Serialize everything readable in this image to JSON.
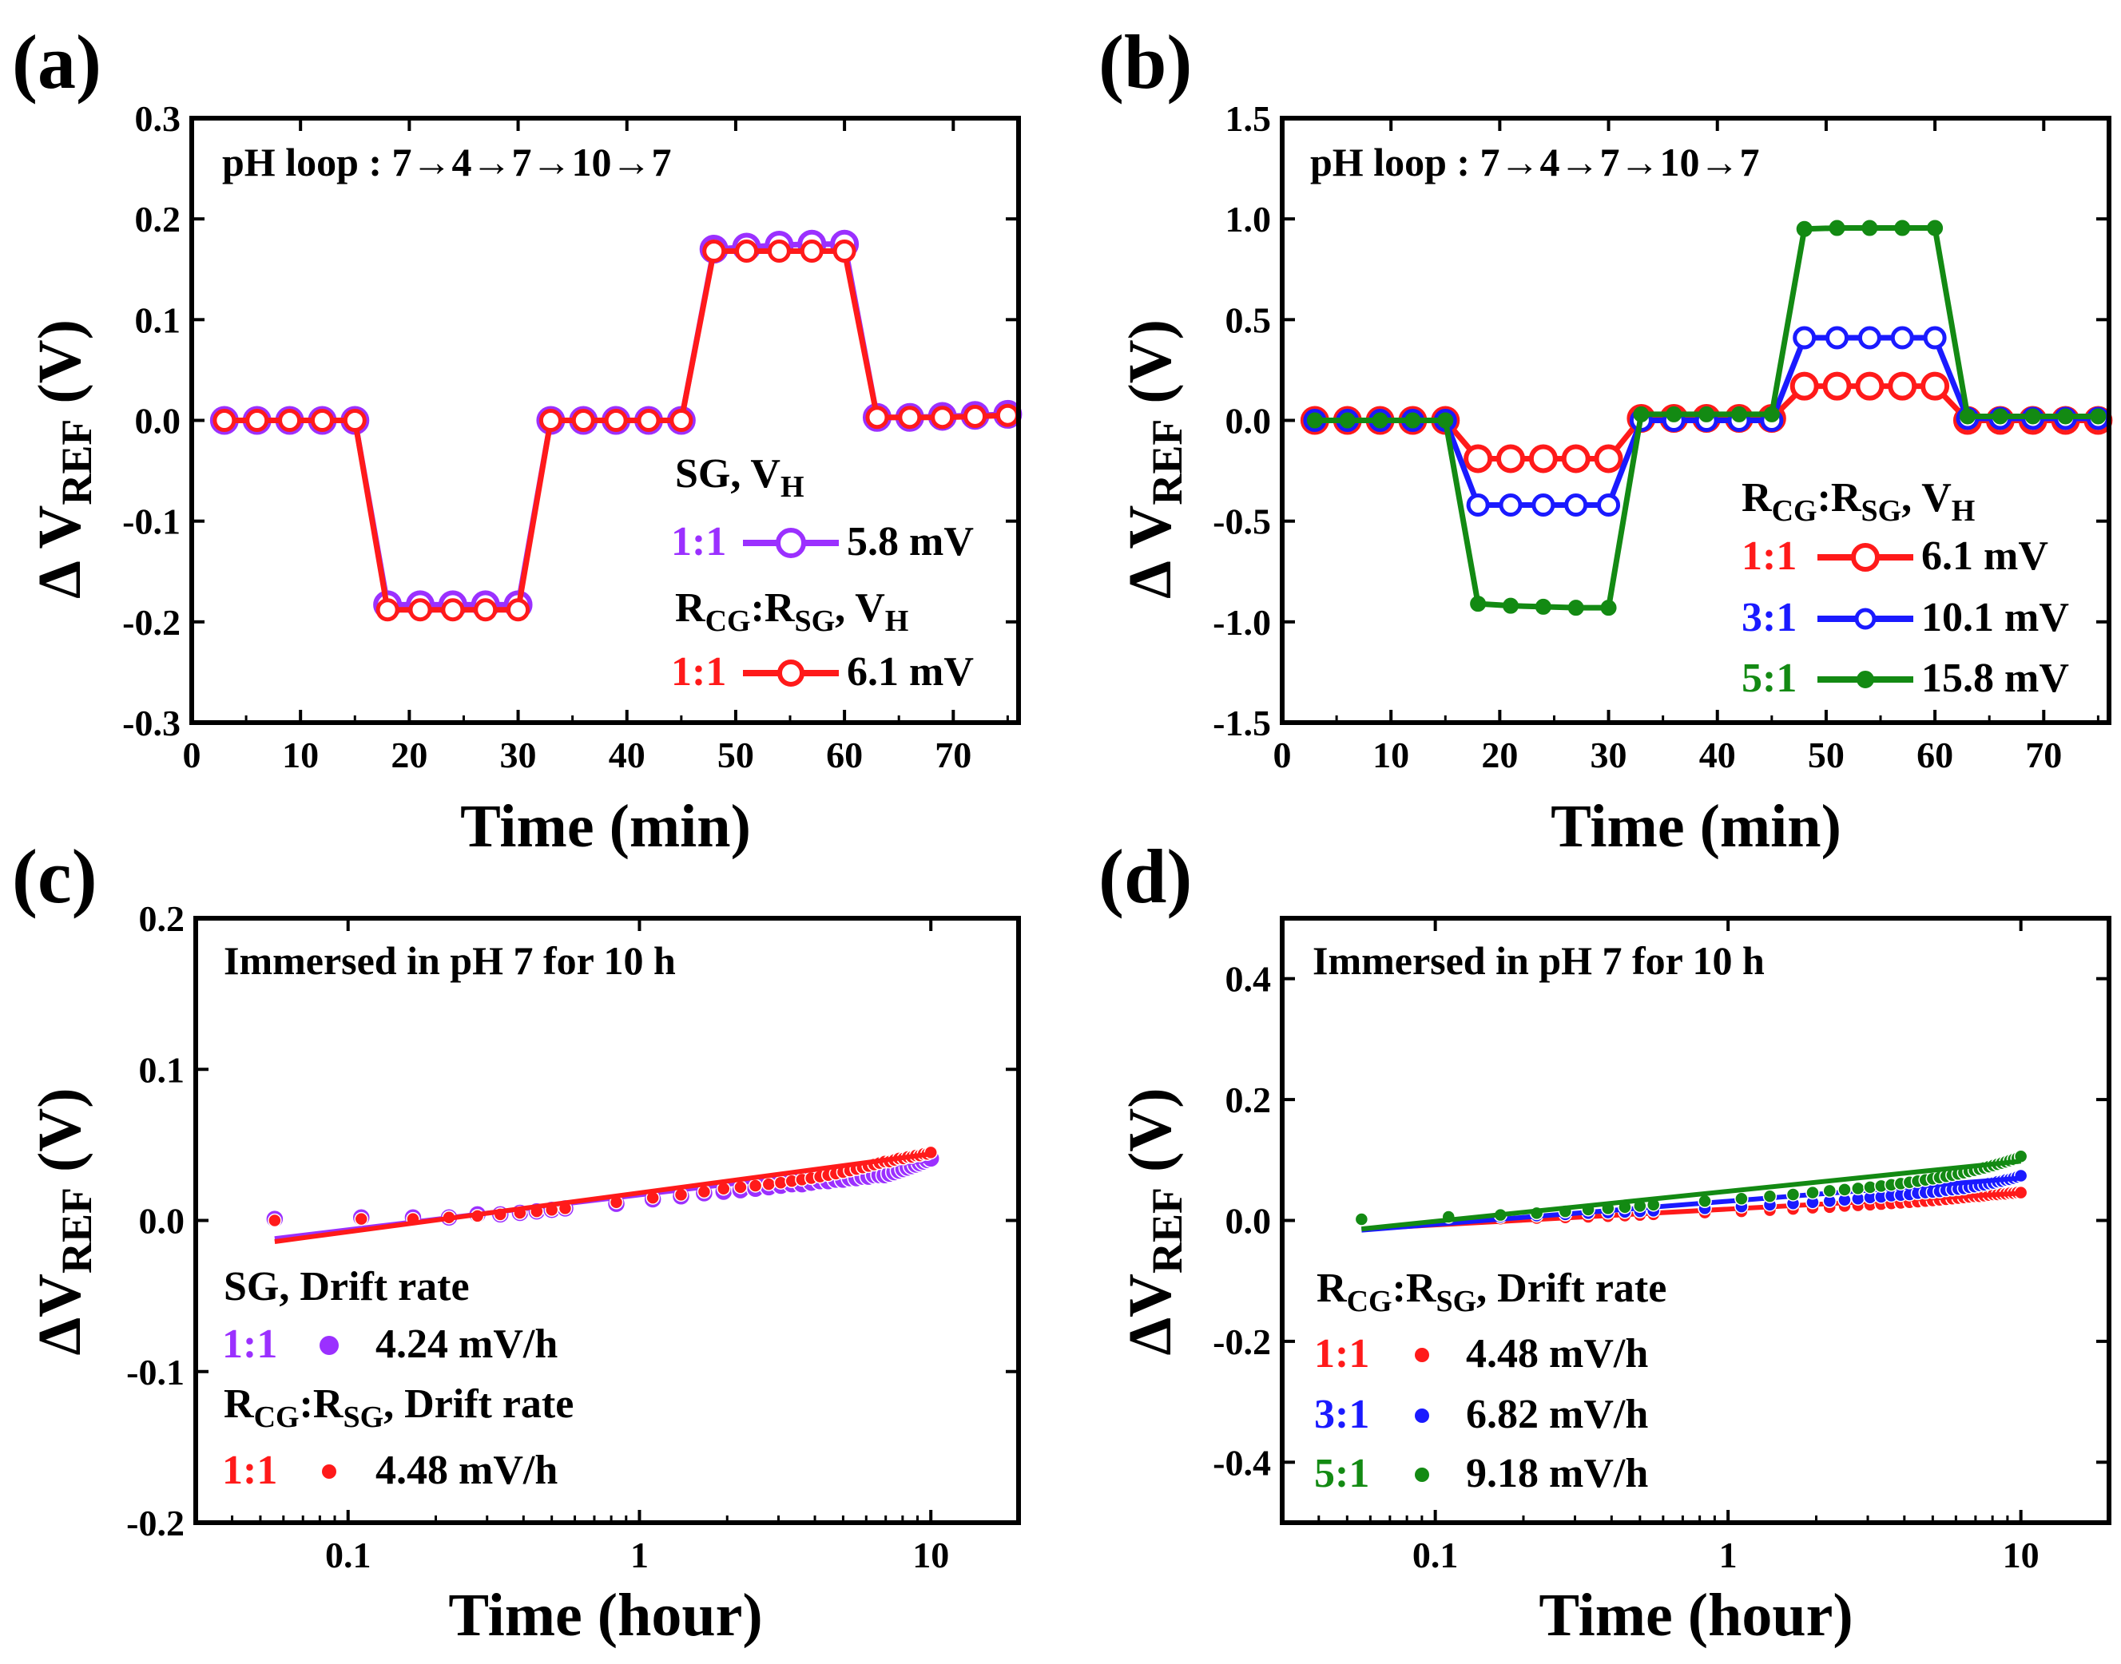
{
  "figure": {
    "colors": {
      "purple": "#9b30ff",
      "red": "#ff1a1a",
      "blue": "#1a1aff",
      "green": "#138a13",
      "frame": "#000000"
    },
    "panels": [
      {
        "letter": "(a)",
        "ylabel_main": "Δ V",
        "ylabel_sub": "REF",
        "ylabel_unit": " (V)",
        "xlabel": "Time (min)",
        "annotation": "pH loop : 7→4→7→10→7"
      },
      {
        "letter": "(b)",
        "ylabel_main": "Δ V",
        "ylabel_sub": "REF",
        "ylabel_unit": " (V)",
        "xlabel": "Time (min)",
        "annotation": "pH loop : 7→4→7→10→7"
      },
      {
        "letter": "(c)",
        "ylabel_main": "ΔV",
        "ylabel_sub": "REF",
        "ylabel_unit": " (V)",
        "xlabel": "Time (hour)",
        "annotation": "Immersed in pH 7 for 10 h"
      },
      {
        "letter": "(d)",
        "ylabel_main": "ΔV",
        "ylabel_sub": "REF",
        "ylabel_unit": " (V)",
        "xlabel": "Time (hour)",
        "annotation": "Immersed in pH 7 for 10 h"
      }
    ],
    "legends": {
      "a": {
        "sg_title": "SG, V",
        "sg_title_sub": "H",
        "rcg_title_r1": "R",
        "rcg_title_cg": "CG",
        "rcg_title_mid": ":R",
        "rcg_title_sg": "SG",
        "rcg_title_end": ", V",
        "rcg_title_h": "H",
        "entries": [
          {
            "key": "1:1",
            "value": "5.8 mV"
          },
          {
            "key": "1:1",
            "value": "6.1 mV"
          }
        ]
      },
      "b": {
        "rcg_title_r1": "R",
        "rcg_title_cg": "CG",
        "rcg_title_mid": ":R",
        "rcg_title_sg": "SG",
        "rcg_title_end": ", V",
        "rcg_title_h": "H",
        "entries": [
          {
            "key": "1:1",
            "value": "6.1 mV"
          },
          {
            "key": "3:1",
            "value": "10.1 mV"
          },
          {
            "key": "5:1",
            "value": "15.8 mV"
          }
        ]
      },
      "c": {
        "sg_title": "SG, Drift rate",
        "rcg_title_r1": "R",
        "rcg_title_cg": "CG",
        "rcg_title_mid": ":R",
        "rcg_title_sg": "SG",
        "rcg_title_end": ", Drift rate",
        "entries": [
          {
            "key": "1:1",
            "value": "4.24 mV/h"
          },
          {
            "key": "1:1",
            "value": "4.48 mV/h"
          }
        ]
      },
      "d": {
        "rcg_title_r1": "R",
        "rcg_title_cg": "CG",
        "rcg_title_mid": ":R",
        "rcg_title_sg": "SG",
        "rcg_title_end": ", Drift rate",
        "entries": [
          {
            "key": "1:1",
            "value": "4.48 mV/h"
          },
          {
            "key": "3:1",
            "value": "6.82 mV/h"
          },
          {
            "key": "5:1",
            "value": "9.18 mV/h"
          }
        ]
      }
    }
  },
  "chart_data": [
    {
      "panel": "a",
      "type": "line",
      "xlabel": "Time (min)",
      "ylabel": "ΔV_REF (V)",
      "xlim": [
        0,
        76
      ],
      "ylim": [
        -0.3,
        0.3
      ],
      "xticks": [
        0,
        10,
        20,
        30,
        40,
        50,
        60,
        70
      ],
      "yticks": [
        -0.3,
        -0.2,
        -0.1,
        0.0,
        0.1,
        0.2,
        0.3
      ],
      "ytick_labels": [
        "-0.3",
        "-0.2",
        "-0.1",
        "0.0",
        "0.1",
        "0.2",
        "0.3"
      ],
      "x": [
        3,
        6,
        9,
        12,
        15,
        18,
        21,
        24,
        27,
        30,
        33,
        36,
        39,
        42,
        45,
        48,
        51,
        54,
        57,
        60,
        63,
        66,
        69,
        72,
        75
      ],
      "series": [
        {
          "name": "SG 1:1",
          "color": "#9b30ff",
          "marker": "open-circle-large",
          "values": [
            0.0,
            0.0,
            0.0,
            0.0,
            0.0,
            -0.183,
            -0.183,
            -0.183,
            -0.183,
            -0.183,
            0.0,
            0.0,
            0.0,
            0.0,
            0.0,
            0.17,
            0.172,
            0.174,
            0.175,
            0.175,
            0.003,
            0.003,
            0.004,
            0.005,
            0.006
          ]
        },
        {
          "name": "RCG:RSG 1:1",
          "color": "#ff1a1a",
          "marker": "open-circle",
          "values": [
            0.0,
            0.0,
            0.0,
            0.0,
            0.0,
            -0.188,
            -0.188,
            -0.188,
            -0.188,
            -0.188,
            0.0,
            0.0,
            0.0,
            0.0,
            0.0,
            0.168,
            0.168,
            0.168,
            0.168,
            0.168,
            0.003,
            0.003,
            0.003,
            0.004,
            0.005
          ]
        }
      ]
    },
    {
      "panel": "b",
      "type": "line",
      "xlabel": "Time (min)",
      "ylabel": "ΔV_REF (V)",
      "xlim": [
        0,
        76
      ],
      "ylim": [
        -1.5,
        1.5
      ],
      "xticks": [
        0,
        10,
        20,
        30,
        40,
        50,
        60,
        70
      ],
      "yticks": [
        -1.5,
        -1.0,
        -0.5,
        0.0,
        0.5,
        1.0,
        1.5
      ],
      "ytick_labels": [
        "-1.5",
        "-1.0",
        "-0.5",
        "0.0",
        "0.5",
        "1.0",
        "1.5"
      ],
      "x": [
        3,
        6,
        9,
        12,
        15,
        18,
        21,
        24,
        27,
        30,
        33,
        36,
        39,
        42,
        45,
        48,
        51,
        54,
        57,
        60,
        63,
        66,
        69,
        72,
        75
      ],
      "series": [
        {
          "name": "1:1",
          "color": "#ff1a1a",
          "marker": "open-circle-large",
          "values": [
            0.0,
            0.0,
            0.0,
            0.0,
            0.0,
            -0.19,
            -0.19,
            -0.19,
            -0.19,
            -0.19,
            0.01,
            0.01,
            0.01,
            0.01,
            0.01,
            0.17,
            0.17,
            0.17,
            0.17,
            0.17,
            0.0,
            0.0,
            0.0,
            0.0,
            0.0
          ]
        },
        {
          "name": "3:1",
          "color": "#1a1aff",
          "marker": "open-circle",
          "values": [
            0.0,
            0.0,
            0.0,
            0.0,
            0.0,
            -0.42,
            -0.42,
            -0.42,
            -0.42,
            -0.42,
            0.0,
            0.0,
            0.0,
            0.0,
            0.0,
            0.41,
            0.41,
            0.41,
            0.41,
            0.41,
            0.01,
            0.01,
            0.01,
            0.01,
            0.01
          ]
        },
        {
          "name": "5:1",
          "color": "#138a13",
          "marker": "filled-circle",
          "values": [
            0.0,
            0.0,
            0.0,
            0.0,
            0.0,
            -0.91,
            -0.92,
            -0.925,
            -0.93,
            -0.93,
            0.03,
            0.03,
            0.03,
            0.03,
            0.03,
            0.95,
            0.955,
            0.955,
            0.955,
            0.955,
            0.02,
            0.02,
            0.02,
            0.02,
            0.02
          ]
        }
      ]
    },
    {
      "panel": "c",
      "type": "scatter",
      "xscale": "log",
      "xlabel": "Time (hour)",
      "ylabel": "ΔV_REF (V)",
      "xlim": [
        0.03,
        20
      ],
      "ylim": [
        -0.2,
        0.2
      ],
      "xticks": [
        0.1,
        1,
        10
      ],
      "xtick_labels": [
        "0.1",
        "1",
        "10"
      ],
      "yticks": [
        -0.2,
        -0.1,
        0.0,
        0.1,
        0.2
      ],
      "ytick_labels": [
        "-0.2",
        "-0.1",
        "0.0",
        "0.1",
        "0.2"
      ],
      "x": [
        0.056,
        0.111,
        0.167,
        0.222,
        0.278,
        0.333,
        0.389,
        0.444,
        0.5,
        0.556,
        0.833,
        1.111,
        1.389,
        1.667,
        1.944,
        2.222,
        2.5,
        2.778,
        3.056,
        3.333,
        3.611,
        3.889,
        4.167,
        4.444,
        4.722,
        5.0,
        5.278,
        5.556,
        5.833,
        6.111,
        6.389,
        6.667,
        6.944,
        7.222,
        7.5,
        7.778,
        8.056,
        8.333,
        8.611,
        8.889,
        9.167,
        9.444,
        9.722,
        10.0
      ],
      "series": [
        {
          "name": "SG 1:1 (4.24 mV/h)",
          "color": "#9b30ff",
          "marker": "filled-circle-large",
          "values": [
            0.001,
            0.002,
            0.002,
            0.002,
            0.004,
            0.004,
            0.005,
            0.006,
            0.007,
            0.008,
            0.011,
            0.014,
            0.016,
            0.018,
            0.019,
            0.02,
            0.021,
            0.022,
            0.023,
            0.024,
            0.024,
            0.025,
            0.026,
            0.026,
            0.027,
            0.027,
            0.028,
            0.028,
            0.029,
            0.029,
            0.03,
            0.03,
            0.03,
            0.031,
            0.032,
            0.033,
            0.034,
            0.035,
            0.036,
            0.037,
            0.038,
            0.039,
            0.04,
            0.041
          ],
          "fit": {
            "x": [
              0.056,
              10.0
            ],
            "y": [
              -0.012,
              0.04
            ]
          }
        },
        {
          "name": "RCG:RSG 1:1 (4.48 mV/h)",
          "color": "#ff1a1a",
          "marker": "filled-circle",
          "values": [
            0.0,
            0.001,
            0.001,
            0.002,
            0.003,
            0.004,
            0.005,
            0.006,
            0.007,
            0.008,
            0.012,
            0.015,
            0.017,
            0.019,
            0.021,
            0.022,
            0.023,
            0.024,
            0.025,
            0.026,
            0.027,
            0.028,
            0.029,
            0.03,
            0.031,
            0.032,
            0.033,
            0.034,
            0.035,
            0.036,
            0.037,
            0.038,
            0.039,
            0.039,
            0.04,
            0.041,
            0.041,
            0.042,
            0.042,
            0.043,
            0.043,
            0.044,
            0.044,
            0.045
          ],
          "fit": {
            "x": [
              0.056,
              10.0
            ],
            "y": [
              -0.014,
              0.044
            ]
          }
        }
      ]
    },
    {
      "panel": "d",
      "type": "scatter",
      "xscale": "log",
      "xlabel": "Time (hour)",
      "ylabel": "ΔV_REF (V)",
      "xlim": [
        0.03,
        20
      ],
      "ylim": [
        -0.5,
        0.5
      ],
      "xticks": [
        0.1,
        1,
        10
      ],
      "xtick_labels": [
        "0.1",
        "1",
        "10"
      ],
      "yticks": [
        -0.4,
        -0.2,
        0.0,
        0.2,
        0.4
      ],
      "ytick_labels": [
        "-0.4",
        "-0.2",
        "0.0",
        "0.2",
        "0.4"
      ],
      "x": [
        0.056,
        0.111,
        0.167,
        0.222,
        0.278,
        0.333,
        0.389,
        0.444,
        0.5,
        0.556,
        0.833,
        1.111,
        1.389,
        1.667,
        1.944,
        2.222,
        2.5,
        2.778,
        3.056,
        3.333,
        3.611,
        3.889,
        4.167,
        4.444,
        4.722,
        5.0,
        5.278,
        5.556,
        5.833,
        6.111,
        6.389,
        6.667,
        6.944,
        7.222,
        7.5,
        7.778,
        8.056,
        8.333,
        8.611,
        8.889,
        9.167,
        9.444,
        9.722,
        10.0
      ],
      "series": [
        {
          "name": "1:1 (4.48 mV/h)",
          "color": "#ff1a1a",
          "marker": "filled-circle",
          "values": [
            0.0,
            0.002,
            0.003,
            0.004,
            0.005,
            0.006,
            0.007,
            0.008,
            0.009,
            0.01,
            0.013,
            0.015,
            0.017,
            0.019,
            0.021,
            0.022,
            0.024,
            0.025,
            0.026,
            0.027,
            0.028,
            0.029,
            0.03,
            0.031,
            0.032,
            0.033,
            0.034,
            0.035,
            0.036,
            0.037,
            0.038,
            0.039,
            0.04,
            0.04,
            0.041,
            0.042,
            0.043,
            0.043,
            0.044,
            0.044,
            0.045,
            0.045,
            0.046,
            0.046
          ],
          "fit": {
            "x": [
              0.056,
              10.0
            ],
            "y": [
              -0.014,
              0.045
            ]
          }
        },
        {
          "name": "3:1 (6.82 mV/h)",
          "color": "#1a1aff",
          "marker": "filled-circle",
          "values": [
            0.001,
            0.004,
            0.006,
            0.008,
            0.01,
            0.012,
            0.013,
            0.014,
            0.015,
            0.016,
            0.02,
            0.023,
            0.026,
            0.028,
            0.03,
            0.032,
            0.034,
            0.036,
            0.038,
            0.039,
            0.041,
            0.042,
            0.043,
            0.045,
            0.046,
            0.047,
            0.048,
            0.05,
            0.051,
            0.052,
            0.053,
            0.055,
            0.056,
            0.058,
            0.059,
            0.061,
            0.062,
            0.064,
            0.065,
            0.067,
            0.068,
            0.07,
            0.072,
            0.074
          ],
          "fit": {
            "x": [
              0.056,
              10.0
            ],
            "y": [
              -0.016,
              0.07
            ]
          }
        },
        {
          "name": "5:1 (9.18 mV/h)",
          "color": "#138a13",
          "marker": "filled-circle",
          "values": [
            0.002,
            0.006,
            0.009,
            0.012,
            0.015,
            0.018,
            0.02,
            0.022,
            0.024,
            0.026,
            0.032,
            0.036,
            0.04,
            0.043,
            0.046,
            0.049,
            0.051,
            0.053,
            0.055,
            0.057,
            0.059,
            0.061,
            0.063,
            0.065,
            0.067,
            0.069,
            0.071,
            0.073,
            0.075,
            0.077,
            0.079,
            0.081,
            0.083,
            0.085,
            0.087,
            0.089,
            0.091,
            0.093,
            0.095,
            0.097,
            0.099,
            0.101,
            0.103,
            0.106
          ],
          "fit": {
            "x": [
              0.056,
              10.0
            ],
            "y": [
              -0.014,
              0.098
            ]
          }
        }
      ]
    }
  ]
}
